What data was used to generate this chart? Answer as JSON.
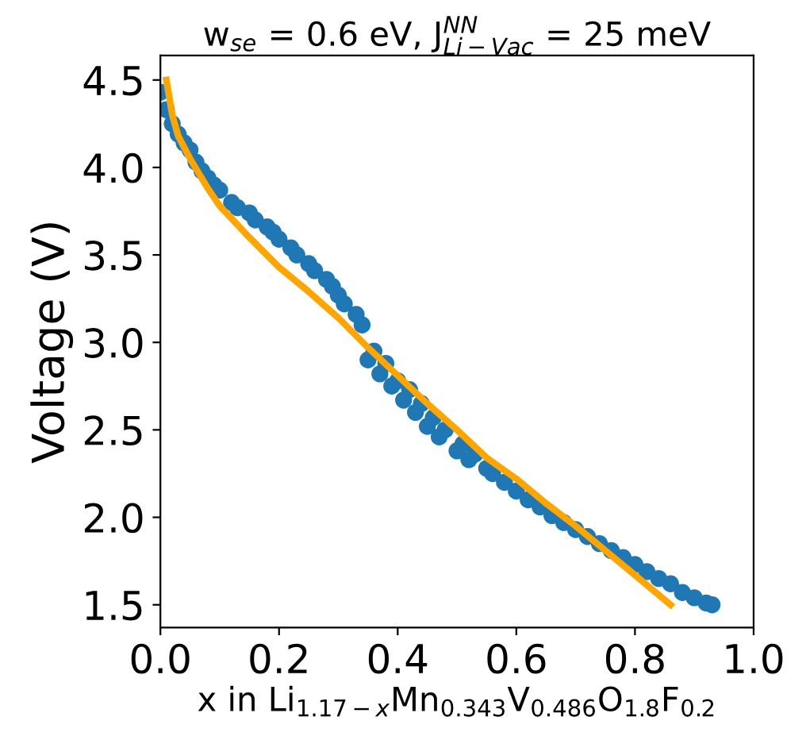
{
  "chart_data": {
    "type": "scatter",
    "title": "w$_{se}$ = 0.6 eV, J$^{NN}$$_{Li−Vac}$ = 25 meV",
    "xlabel": "x in Li$_{1.17−x}$Mn$_{0.343}$V$_{0.486}$O$_{1.8}$F$_{0.2}$",
    "ylabel": "Voltage (V)",
    "xlim": [
      0.0,
      1.0
    ],
    "ylim": [
      1.37,
      4.64
    ],
    "xticks": [
      {
        "value": 0,
        "label": "0.0"
      },
      0.2,
      0.4,
      0.6,
      0.8,
      {
        "value": 1,
        "label": "1.0"
      }
    ],
    "yticks": [
      1.5,
      {
        "value": 2,
        "label": "2.0"
      },
      2.5,
      {
        "value": 3,
        "label": "3.0"
      },
      3.5,
      {
        "value": 4,
        "label": "4.0"
      },
      4.5
    ],
    "grid": false,
    "legend": false,
    "marker": "circle",
    "series": [
      {
        "color": "#1f77b4",
        "x": [
          0.0,
          0.01,
          0.02,
          0.03,
          0.04,
          0.05,
          0.06,
          0.07,
          0.08,
          0.09,
          0.1,
          0.12,
          0.13,
          0.15,
          0.16,
          0.18,
          0.19,
          0.2,
          0.22,
          0.23,
          0.25,
          0.26,
          0.28,
          0.29,
          0.3,
          0.31,
          0.33,
          0.34,
          0.35,
          0.36,
          0.37,
          0.38,
          0.39,
          0.4,
          0.41,
          0.42,
          0.43,
          0.44,
          0.45,
          0.46,
          0.47,
          0.48,
          0.5,
          0.51,
          0.52,
          0.53,
          0.55,
          0.56,
          0.58,
          0.6,
          0.62,
          0.64,
          0.66,
          0.68,
          0.7,
          0.72,
          0.74,
          0.76,
          0.78,
          0.8,
          0.82,
          0.84,
          0.86,
          0.88,
          0.9,
          0.92,
          0.93
        ],
        "values": [
          4.43,
          4.33,
          4.25,
          4.19,
          4.14,
          4.1,
          4.03,
          3.98,
          3.94,
          3.9,
          3.87,
          3.8,
          3.77,
          3.74,
          3.7,
          3.66,
          3.63,
          3.59,
          3.54,
          3.5,
          3.45,
          3.41,
          3.36,
          3.32,
          3.27,
          3.22,
          3.16,
          3.1,
          2.9,
          2.95,
          2.82,
          2.88,
          2.75,
          2.78,
          2.67,
          2.73,
          2.6,
          2.65,
          2.52,
          2.57,
          2.46,
          2.5,
          2.38,
          2.42,
          2.33,
          2.36,
          2.28,
          2.25,
          2.2,
          2.15,
          2.1,
          2.06,
          2.01,
          1.97,
          1.93,
          1.89,
          1.85,
          1.81,
          1.77,
          1.73,
          1.69,
          1.65,
          1.62,
          1.57,
          1.54,
          1.51,
          1.5
        ]
      },
      {
        "type": "line",
        "color": "#ffa500",
        "marker": "none",
        "line_style": "solid",
        "x": [
          0.01,
          0.02,
          0.03,
          0.05,
          0.08,
          0.1,
          0.15,
          0.2,
          0.25,
          0.3,
          0.35,
          0.4,
          0.45,
          0.5,
          0.55,
          0.6,
          0.65,
          0.7,
          0.75,
          0.8,
          0.86
        ],
        "values": [
          4.5,
          4.3,
          4.18,
          4.05,
          3.88,
          3.78,
          3.6,
          3.43,
          3.29,
          3.14,
          2.97,
          2.81,
          2.65,
          2.5,
          2.34,
          2.22,
          2.08,
          1.95,
          1.81,
          1.67,
          1.5
        ]
      }
    ]
  }
}
